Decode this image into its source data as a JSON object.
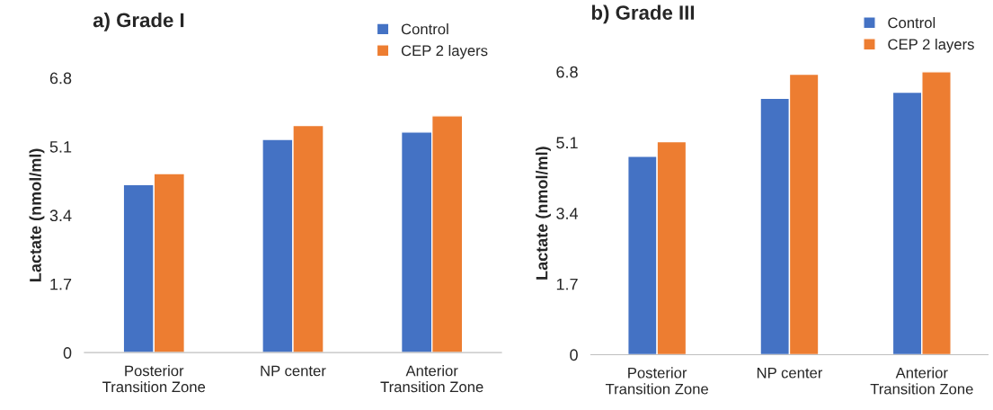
{
  "chart_data": [
    {
      "type": "bar",
      "title": "a) Grade I",
      "ylabel": "Lactate (nmol/ml)",
      "categories": [
        "Posterior\nTransition Zone",
        "NP center",
        "Anterior\nTransition Zone"
      ],
      "series": [
        {
          "name": "Control",
          "color": "#4472c4",
          "values": [
            4.16,
            5.28,
            5.46
          ]
        },
        {
          "name": "CEP 2 layers",
          "color": "#ed7d31",
          "values": [
            4.43,
            5.62,
            5.86
          ]
        }
      ],
      "ylim": [
        0,
        6.8
      ],
      "yticks": [
        {
          "value": 0,
          "label": "0"
        },
        1.7,
        3.4,
        5.1,
        6.8
      ],
      "legend": "top right",
      "grid": false
    },
    {
      "type": "bar",
      "title": "b) Grade III",
      "ylabel": "Lactate (nmol/ml)",
      "categories": [
        "Posterior\nTransition Zone",
        "NP center",
        "Anterior\nTransition Zone"
      ],
      "series": [
        {
          "name": "Control",
          "color": "#4472c4",
          "values": [
            4.77,
            6.16,
            6.31
          ]
        },
        {
          "name": "CEP 2 layers",
          "color": "#ed7d31",
          "values": [
            5.12,
            6.74,
            6.8
          ]
        }
      ],
      "ylim": [
        0,
        6.8
      ],
      "yticks": [
        {
          "value": 0,
          "label": "0"
        },
        1.7,
        3.4,
        5.1,
        6.8
      ],
      "legend": "top right",
      "grid": false
    }
  ]
}
